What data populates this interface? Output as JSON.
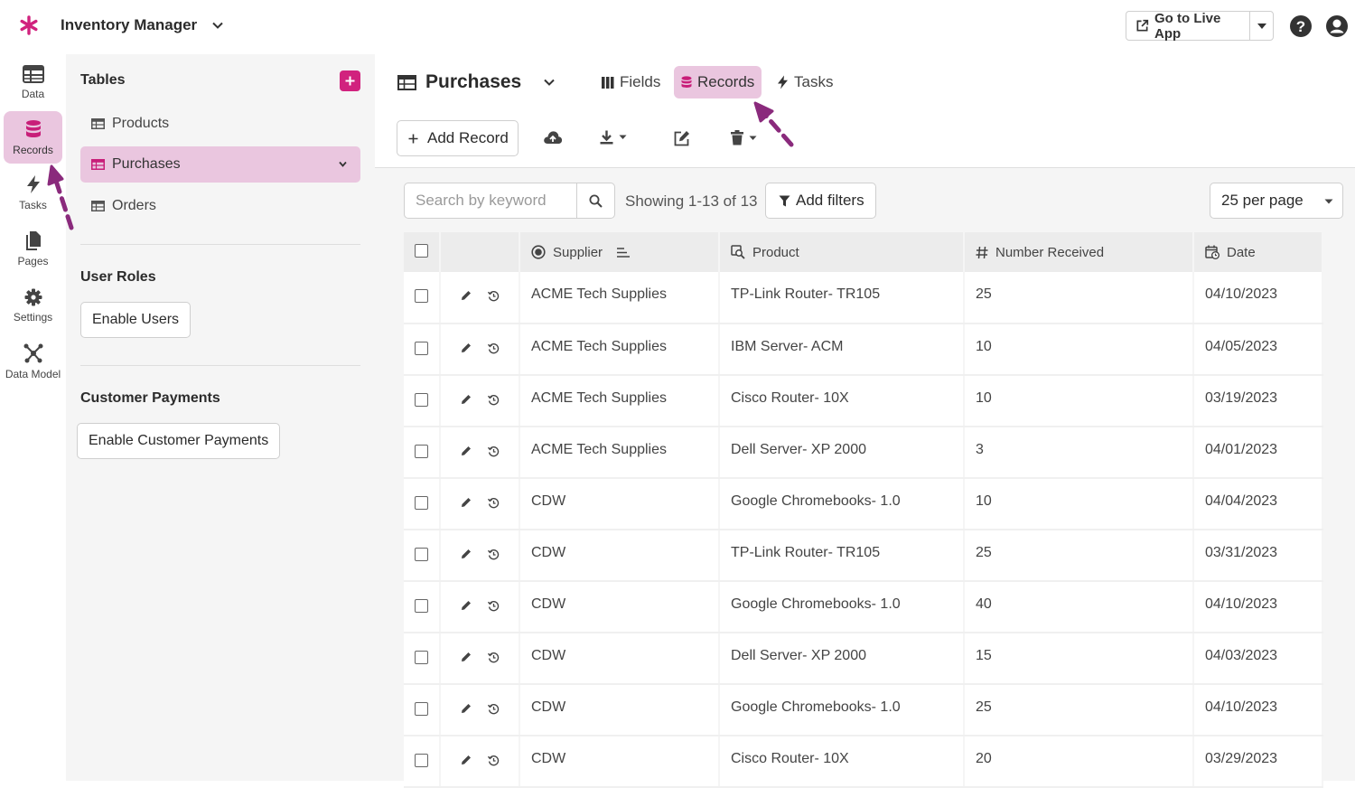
{
  "app": {
    "name": "Inventory Manager",
    "go_live": "Go to Live App"
  },
  "rail": [
    {
      "label": "Data",
      "icon": "table-icon"
    },
    {
      "label": "Records",
      "icon": "database-icon"
    },
    {
      "label": "Tasks",
      "icon": "lightning-icon"
    },
    {
      "label": "Pages",
      "icon": "pages-icon"
    },
    {
      "label": "Settings",
      "icon": "gear-icon"
    },
    {
      "label": "Data Model",
      "icon": "data-model-icon"
    }
  ],
  "sidebar": {
    "tables_heading": "Tables",
    "tables": [
      "Products",
      "Purchases",
      "Orders"
    ],
    "user_roles_heading": "User Roles",
    "enable_users": "Enable Users",
    "payments_heading": "Customer Payments",
    "enable_payments": "Enable Customer Payments"
  },
  "main": {
    "title": "Purchases",
    "tabs": [
      "Fields",
      "Records",
      "Tasks"
    ],
    "add_record": "Add Record"
  },
  "toolbar": {
    "search_placeholder": "Search by keyword",
    "showing": "Showing 1-13 of 13",
    "add_filters": "Add filters",
    "per_page": "25 per page"
  },
  "grid": {
    "columns": [
      "Supplier",
      "Product",
      "Number Received",
      "Date"
    ],
    "rows": [
      [
        "ACME Tech Supplies",
        "TP-Link Router- TR105",
        "25",
        "04/10/2023"
      ],
      [
        "ACME Tech Supplies",
        "IBM Server- ACM",
        "10",
        "04/05/2023"
      ],
      [
        "ACME Tech Supplies",
        "Cisco Router- 10X",
        "10",
        "03/19/2023"
      ],
      [
        "ACME Tech Supplies",
        "Dell Server- XP 2000",
        "3",
        "04/01/2023"
      ],
      [
        "CDW",
        "Google Chromebooks- 1.0",
        "10",
        "04/04/2023"
      ],
      [
        "CDW",
        "TP-Link Router- TR105",
        "25",
        "03/31/2023"
      ],
      [
        "CDW",
        "Google Chromebooks- 1.0",
        "40",
        "04/10/2023"
      ],
      [
        "CDW",
        "Dell Server- XP 2000",
        "15",
        "04/03/2023"
      ],
      [
        "CDW",
        "Google Chromebooks- 1.0",
        "25",
        "04/10/2023"
      ],
      [
        "CDW",
        "Cisco Router- 10X",
        "20",
        "03/29/2023"
      ]
    ]
  },
  "colors": {
    "accent": "#d1227e",
    "active_bg": "#eac6df",
    "arrow": "#8a2a7c"
  }
}
